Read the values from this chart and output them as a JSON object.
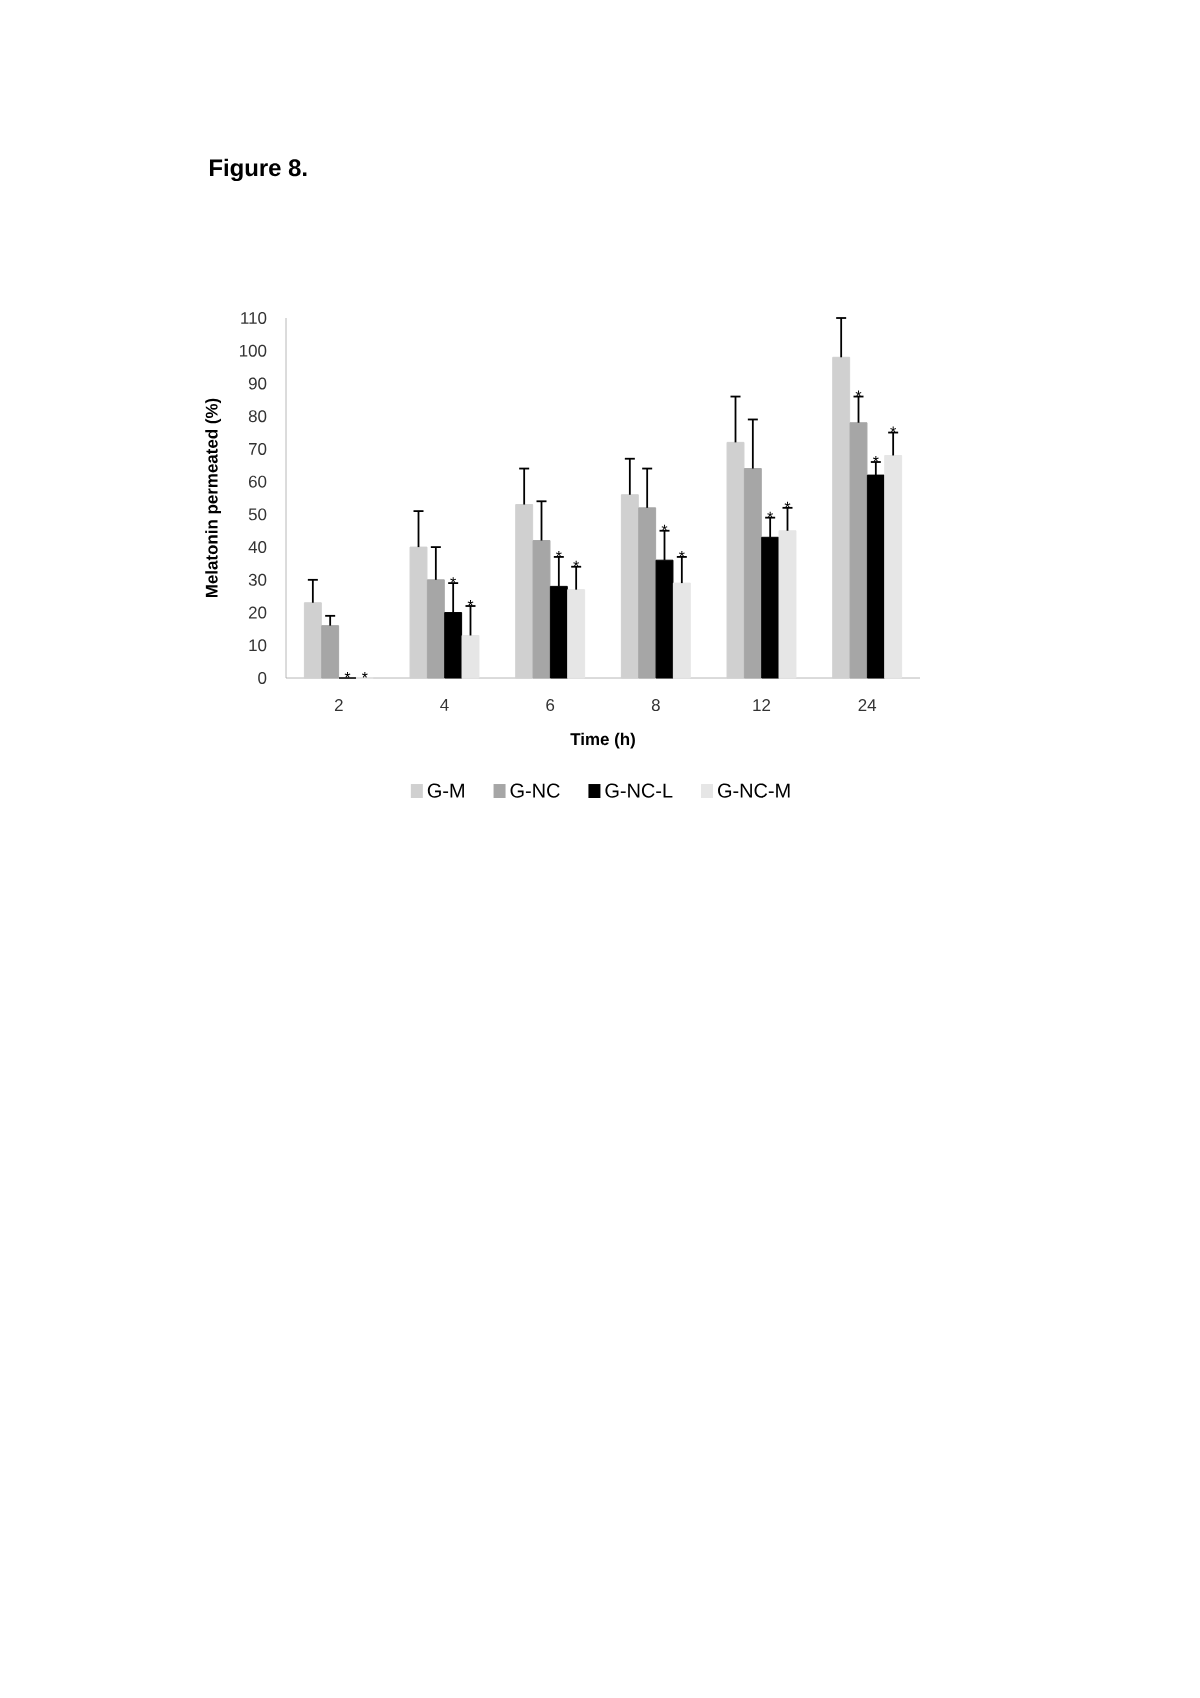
{
  "chart_data": {
    "type": "bar",
    "title": "Figure 8.",
    "xlabel": "Time (h)",
    "ylabel": "Melatonin permeated (%)",
    "categories": [
      "2",
      "4",
      "6",
      "8",
      "12",
      "24"
    ],
    "series": [
      {
        "name": "G-M",
        "color": "#d0d0d0",
        "values": [
          23,
          40,
          53,
          56,
          72,
          98
        ],
        "errors": [
          [
            23,
            30
          ],
          [
            40,
            51
          ],
          [
            53,
            64
          ],
          [
            56,
            67
          ],
          [
            72,
            86
          ],
          [
            98,
            110
          ]
        ]
      },
      {
        "name": "G-NC",
        "color": "#a6a6a6",
        "values": [
          16,
          30,
          42,
          52,
          64,
          78
        ],
        "errors": [
          [
            16,
            19
          ],
          [
            30,
            40
          ],
          [
            42,
            54
          ],
          [
            52,
            64
          ],
          [
            64,
            79
          ],
          [
            78,
            86
          ]
        ],
        "value_labels": [
          null,
          null,
          null,
          null,
          null,
          "*"
        ]
      },
      {
        "name": "G-NC-L",
        "color": "#000000",
        "values": [
          0,
          20,
          28,
          36,
          43,
          62
        ],
        "errors": [
          null,
          [
            20,
            29
          ],
          [
            28,
            37
          ],
          [
            36,
            45
          ],
          [
            43,
            49
          ],
          [
            62,
            66
          ]
        ],
        "value_labels": [
          "*",
          "*",
          "*",
          "*",
          "*",
          "*"
        ]
      },
      {
        "name": "G-NC-M",
        "color": "#e6e6e6",
        "values": [
          0,
          13,
          27,
          29,
          45,
          68
        ],
        "errors": [
          null,
          [
            13,
            22
          ],
          [
            27,
            34
          ],
          [
            29,
            37
          ],
          [
            45,
            52
          ],
          [
            68,
            75
          ]
        ],
        "value_labels": [
          "*",
          "*",
          "*",
          "*",
          "*",
          "*"
        ]
      }
    ],
    "ylim": [
      0,
      110
    ],
    "yticks": [
      0,
      10,
      20,
      30,
      40,
      50,
      60,
      70,
      80,
      90,
      100,
      110
    ],
    "legend": "bottom"
  }
}
